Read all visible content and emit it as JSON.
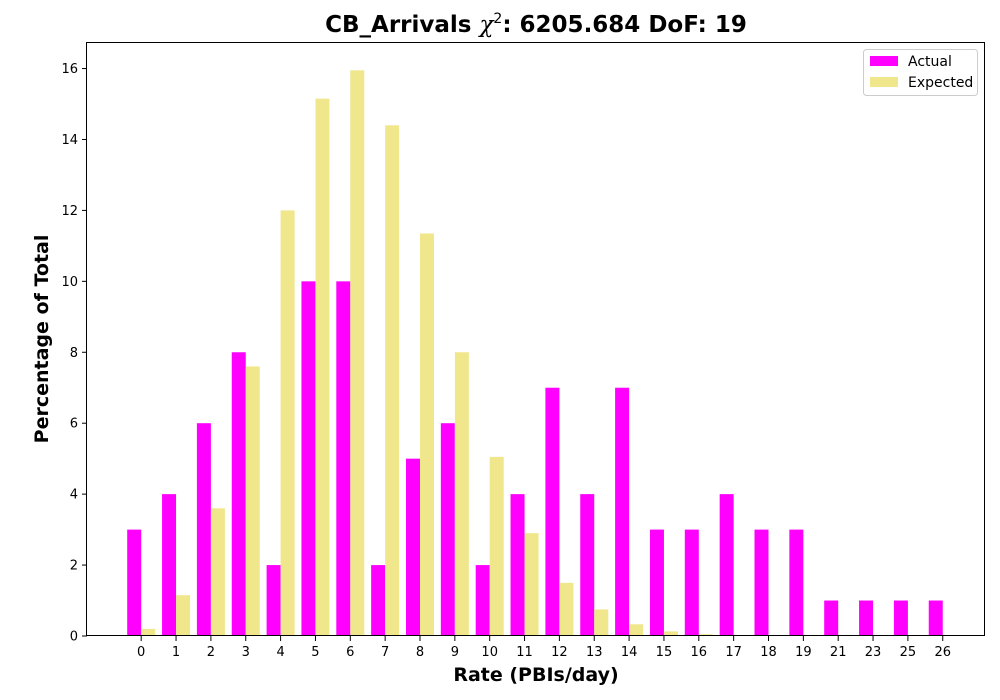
{
  "chart_data": {
    "type": "bar",
    "title_prefix": "CB_Arrivals ",
    "title_chi": "χ",
    "title_sup": "2",
    "title_suffix": ": 6205.684 DoF: 19",
    "xlabel": "Rate (PBIs/day)",
    "ylabel": "Percentage of Total",
    "categories": [
      "0",
      "1",
      "2",
      "3",
      "4",
      "5",
      "6",
      "7",
      "8",
      "9",
      "10",
      "11",
      "12",
      "13",
      "14",
      "15",
      "16",
      "17",
      "18",
      "19",
      "21",
      "23",
      "25",
      "26"
    ],
    "series": [
      {
        "name": "Actual",
        "color": "#ff00ff",
        "values": [
          3,
          4,
          6,
          8,
          2,
          10,
          10,
          2,
          5,
          6,
          2,
          4,
          7,
          4,
          7,
          3,
          3,
          4,
          3,
          3,
          1,
          1,
          1,
          1
        ]
      },
      {
        "name": "Expected",
        "color": "#f0e68c",
        "values": [
          0.2,
          1.15,
          3.6,
          7.6,
          12.0,
          15.15,
          15.95,
          14.4,
          11.35,
          8.0,
          5.05,
          2.9,
          1.5,
          0.75,
          0.33,
          0.13,
          0.05,
          0.02,
          0.01,
          0,
          0,
          0,
          0,
          0
        ]
      }
    ],
    "ylim": [
      0,
      16.72
    ],
    "yticks": [
      "0",
      "2",
      "4",
      "6",
      "8",
      "10",
      "12",
      "14",
      "16"
    ],
    "legend_position": "top-right",
    "grid": false
  }
}
